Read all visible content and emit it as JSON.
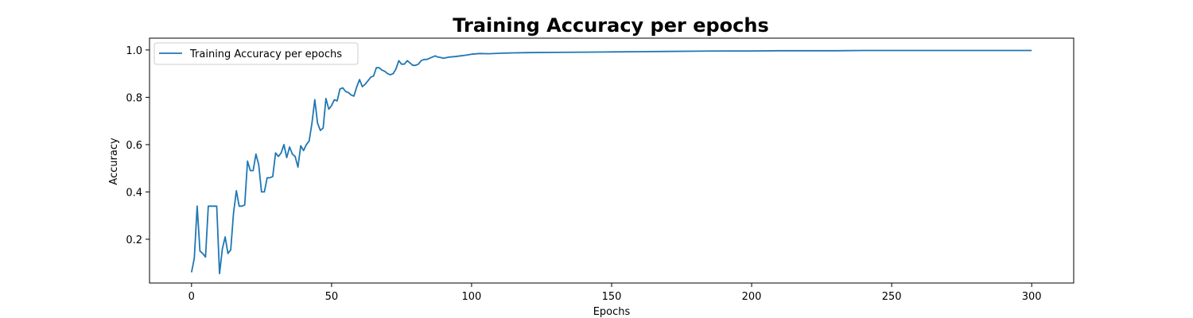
{
  "chart_data": {
    "type": "line",
    "title": "Training Accuracy per epochs",
    "xlabel": "Epochs",
    "ylabel": "Accuracy",
    "xlim": [
      -15,
      315
    ],
    "ylim": [
      0.015,
      1.05
    ],
    "xticks": [
      0,
      50,
      100,
      150,
      200,
      250,
      300
    ],
    "yticks": [
      0.2,
      0.4,
      0.6,
      0.8,
      1.0
    ],
    "xtick_labels": [
      "0",
      "50",
      "100",
      "150",
      "200",
      "250",
      "300"
    ],
    "ytick_labels": [
      "0.2",
      "0.4",
      "0.6",
      "0.8",
      "1.0"
    ],
    "grid": false,
    "legend_position": "upper-left",
    "color": "#1f77b4",
    "series": [
      {
        "name": "Training Accuracy per epochs",
        "x": [
          0,
          1,
          2,
          3,
          4,
          5,
          6,
          7,
          8,
          9,
          10,
          11,
          12,
          13,
          14,
          15,
          16,
          17,
          18,
          19,
          20,
          21,
          22,
          23,
          24,
          25,
          26,
          27,
          28,
          29,
          30,
          31,
          32,
          33,
          34,
          35,
          36,
          37,
          38,
          39,
          40,
          41,
          42,
          43,
          44,
          45,
          46,
          47,
          48,
          49,
          50,
          51,
          52,
          53,
          54,
          55,
          56,
          57,
          58,
          59,
          60,
          61,
          62,
          63,
          64,
          65,
          66,
          67,
          68,
          69,
          70,
          71,
          72,
          73,
          74,
          75,
          76,
          77,
          78,
          79,
          80,
          81,
          82,
          83,
          84,
          85,
          86,
          87,
          88,
          89,
          90,
          92,
          94,
          96,
          98,
          100,
          103,
          106,
          110,
          115,
          120,
          130,
          140,
          150,
          160,
          170,
          180,
          190,
          200,
          210,
          220,
          230,
          240,
          250,
          260,
          270,
          280,
          290,
          300
        ],
        "y": [
          0.06,
          0.12,
          0.34,
          0.15,
          0.14,
          0.125,
          0.34,
          0.34,
          0.34,
          0.34,
          0.055,
          0.16,
          0.21,
          0.14,
          0.155,
          0.31,
          0.405,
          0.34,
          0.34,
          0.345,
          0.53,
          0.49,
          0.49,
          0.56,
          0.515,
          0.4,
          0.4,
          0.46,
          0.46,
          0.465,
          0.565,
          0.55,
          0.565,
          0.6,
          0.545,
          0.59,
          0.56,
          0.55,
          0.505,
          0.595,
          0.575,
          0.6,
          0.615,
          0.69,
          0.79,
          0.69,
          0.66,
          0.67,
          0.795,
          0.75,
          0.765,
          0.79,
          0.785,
          0.835,
          0.84,
          0.825,
          0.82,
          0.81,
          0.805,
          0.845,
          0.875,
          0.845,
          0.855,
          0.87,
          0.885,
          0.89,
          0.925,
          0.925,
          0.915,
          0.91,
          0.9,
          0.895,
          0.9,
          0.92,
          0.955,
          0.94,
          0.94,
          0.955,
          0.945,
          0.935,
          0.935,
          0.94,
          0.955,
          0.96,
          0.96,
          0.965,
          0.97,
          0.975,
          0.97,
          0.968,
          0.965,
          0.97,
          0.972,
          0.975,
          0.978,
          0.982,
          0.985,
          0.984,
          0.986,
          0.988,
          0.989,
          0.99,
          0.991,
          0.992,
          0.993,
          0.994,
          0.995,
          0.996,
          0.996,
          0.997,
          0.997,
          0.997,
          0.998,
          0.998,
          0.998,
          0.998,
          0.998,
          0.998,
          0.998
        ]
      }
    ]
  }
}
